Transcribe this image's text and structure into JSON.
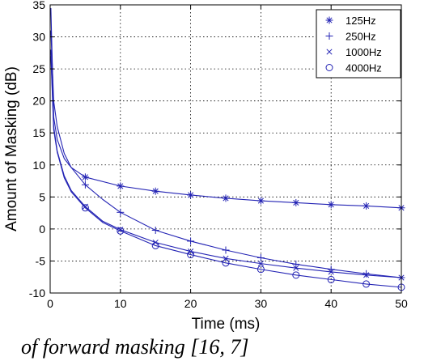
{
  "chart_data": {
    "type": "line",
    "xlabel": "Time (ms)",
    "ylabel": "Amount of Masking (dB)",
    "xlim": [
      0,
      50
    ],
    "ylim": [
      -10,
      35
    ],
    "xticks": [
      0,
      10,
      20,
      30,
      40,
      50
    ],
    "yticks": [
      -10,
      -5,
      0,
      5,
      10,
      15,
      20,
      25,
      30,
      35
    ],
    "grid": true,
    "legend_position": "top-right",
    "line_color": "#2323b4",
    "series": [
      {
        "name": "125Hz",
        "marker": "asterisk",
        "x": [
          0.1,
          0.5,
          1,
          2,
          3,
          5,
          10,
          15,
          20,
          25,
          30,
          35,
          40,
          45,
          50
        ],
        "y": [
          34.5,
          17.5,
          14.0,
          11.0,
          9.6,
          8.1,
          6.7,
          5.9,
          5.3,
          4.8,
          4.4,
          4.1,
          3.8,
          3.6,
          3.3
        ],
        "marker_x": [
          5,
          10,
          15,
          20,
          25,
          30,
          35,
          40,
          45,
          50
        ]
      },
      {
        "name": "250Hz",
        "marker": "plus",
        "x": [
          0.1,
          0.5,
          1,
          2,
          3,
          5,
          7.5,
          10,
          15,
          20,
          25,
          30,
          35,
          40,
          45,
          50
        ],
        "y": [
          31.0,
          20.0,
          16.0,
          11.8,
          9.6,
          6.9,
          4.6,
          2.6,
          -0.2,
          -1.9,
          -3.3,
          -4.5,
          -5.5,
          -6.3,
          -7.0,
          -7.6
        ],
        "marker_x": [
          5,
          10,
          15,
          20,
          25,
          30,
          35,
          40,
          45,
          50
        ]
      },
      {
        "name": "1000Hz",
        "marker": "x",
        "x": [
          0.1,
          0.5,
          1,
          2,
          3,
          5,
          7.5,
          10,
          15,
          20,
          25,
          30,
          35,
          40,
          45,
          50
        ],
        "y": [
          28.0,
          16.0,
          12.2,
          8.3,
          6.0,
          3.5,
          1.2,
          -0.1,
          -2.1,
          -3.5,
          -4.6,
          -5.4,
          -6.1,
          -6.7,
          -7.2,
          -7.6
        ],
        "marker_x": [
          5,
          10,
          15,
          20,
          25,
          30,
          35,
          40,
          45,
          50
        ]
      },
      {
        "name": "4000Hz",
        "marker": "circle",
        "x": [
          0.1,
          0.5,
          1,
          2,
          3,
          5,
          7.5,
          10,
          15,
          20,
          25,
          30,
          35,
          40,
          45,
          50
        ],
        "y": [
          27.0,
          15.5,
          12.0,
          8.0,
          5.8,
          3.3,
          1.0,
          -0.3,
          -2.6,
          -4.0,
          -5.3,
          -6.3,
          -7.2,
          -7.9,
          -8.6,
          -9.1
        ],
        "marker_x": [
          5,
          10,
          15,
          20,
          25,
          30,
          35,
          40,
          45,
          50
        ]
      }
    ]
  },
  "caption": "of forward masking [16, 7]"
}
